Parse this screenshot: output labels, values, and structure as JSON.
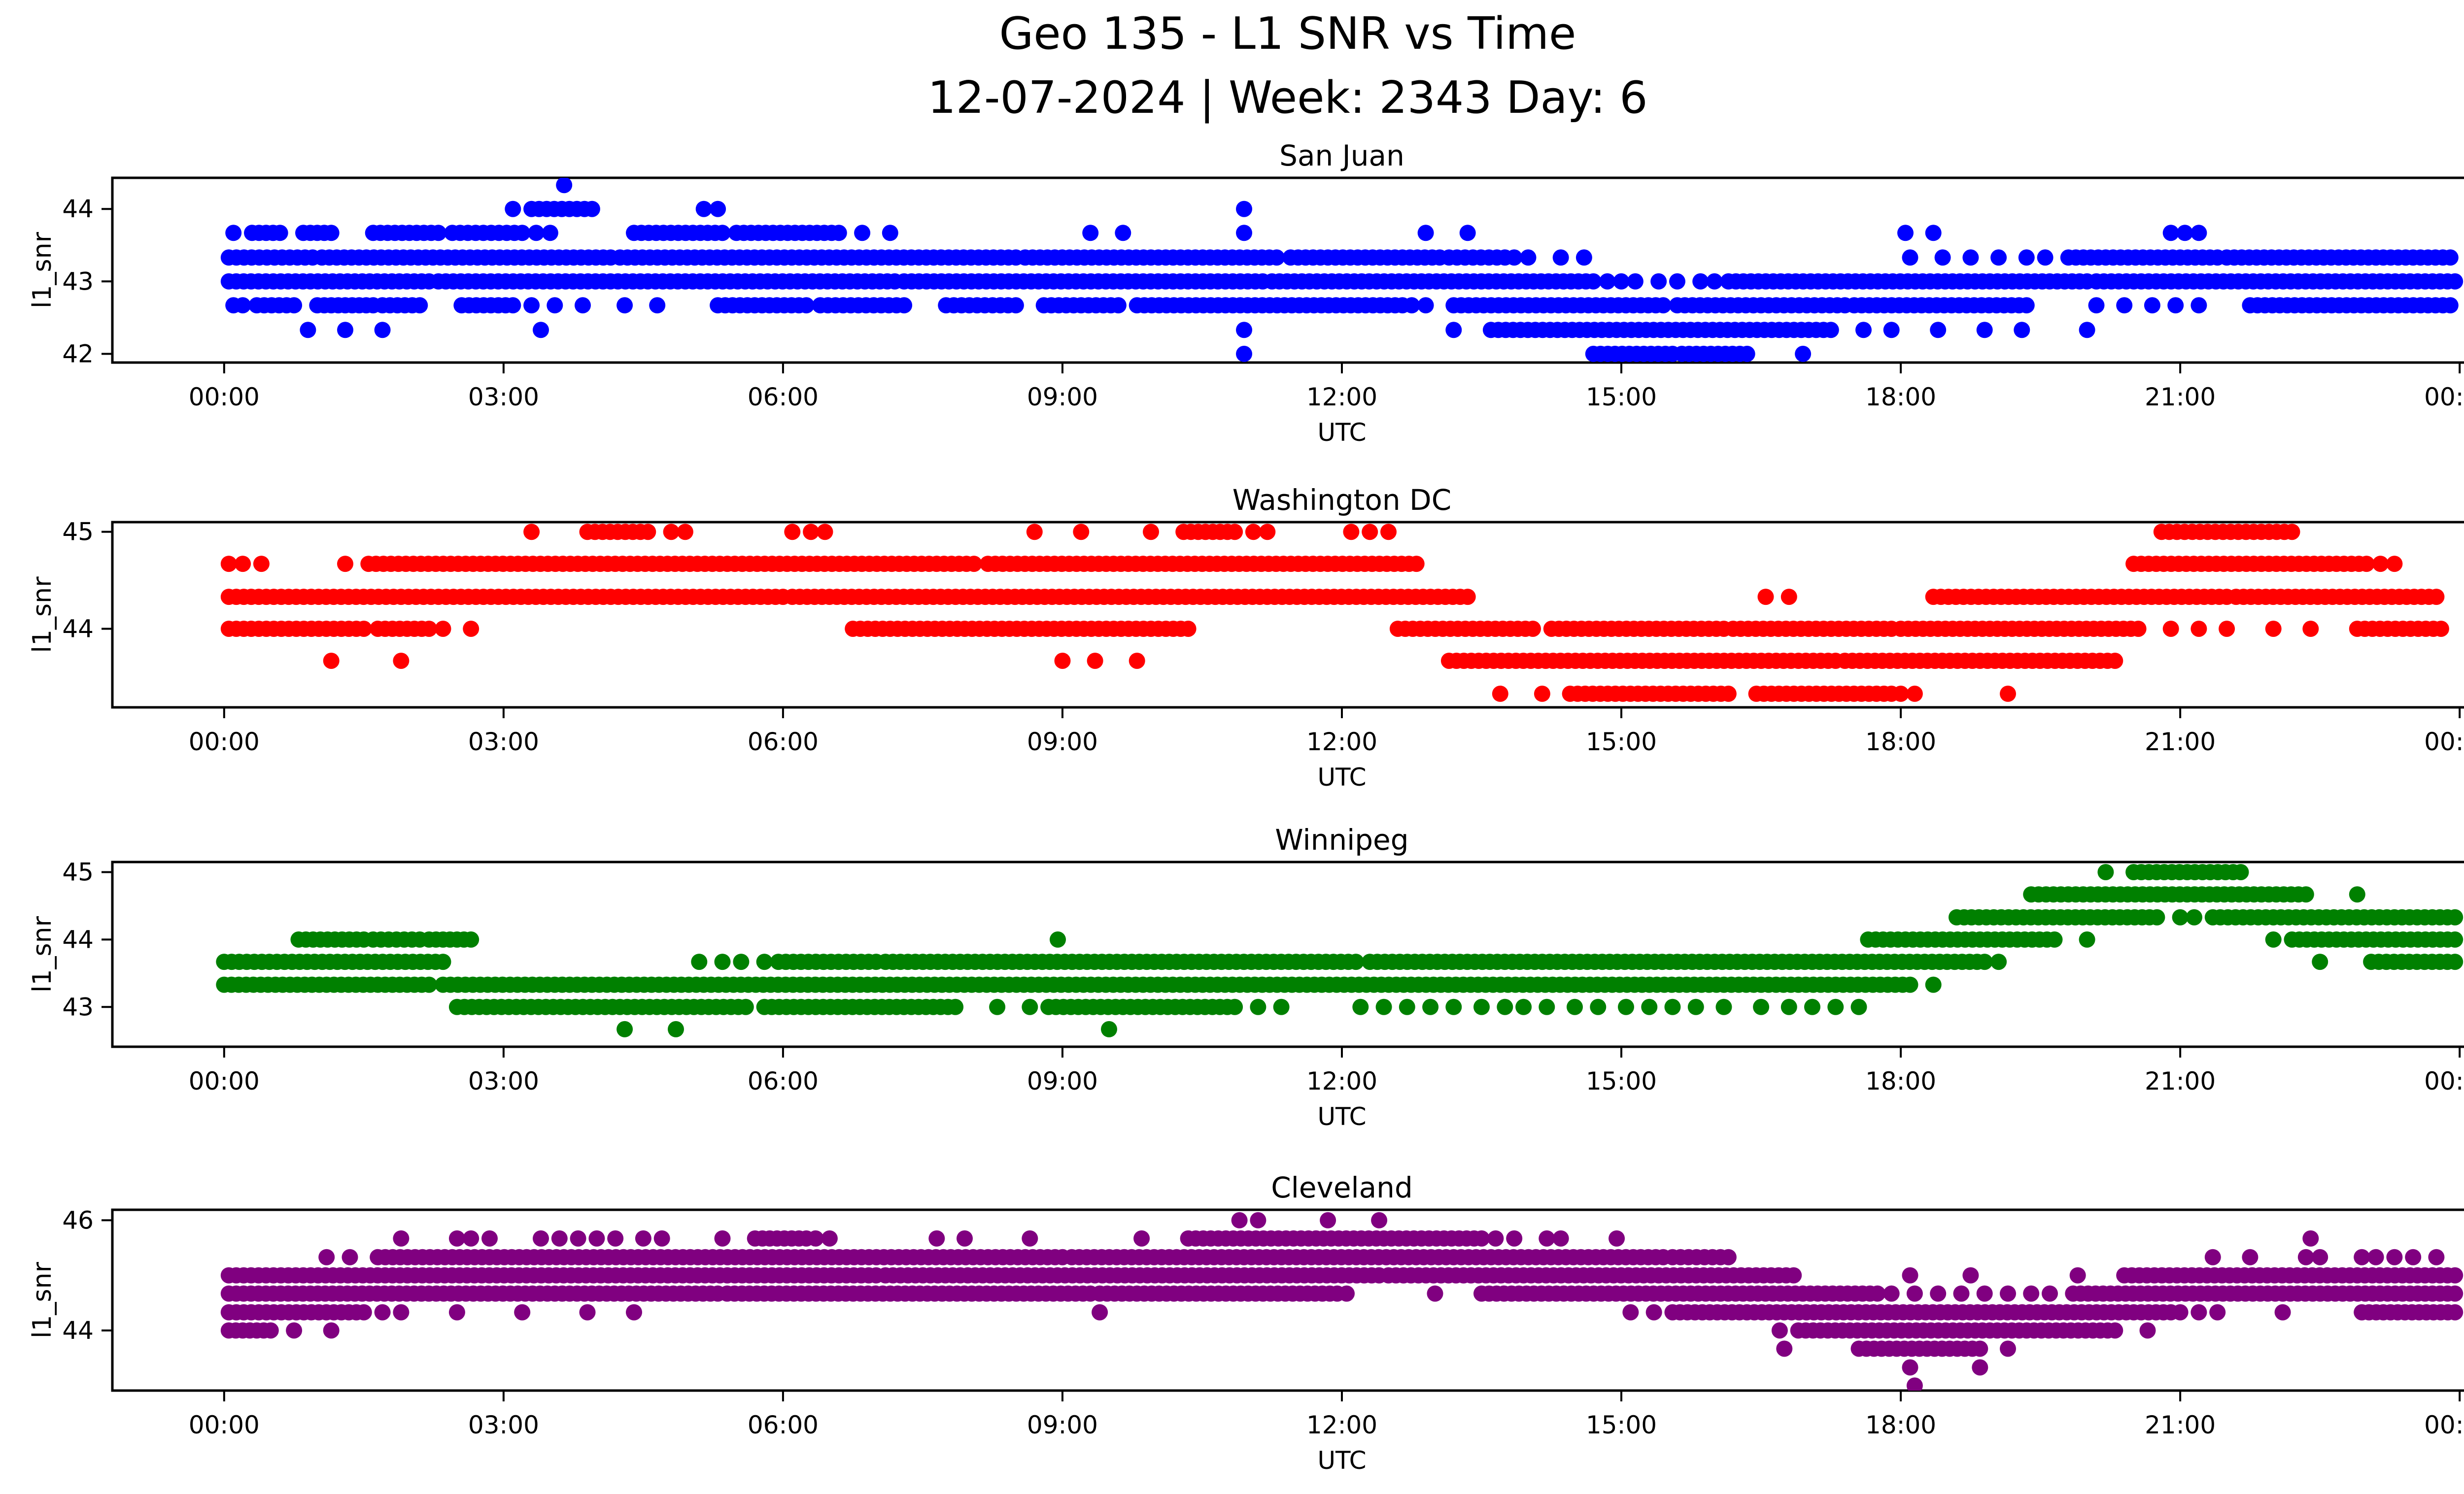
{
  "title": {
    "line1": "Geo 135 - L1 SNR vs Time",
    "line2": "12-07-2024 | Week: 2343 Day: 6"
  },
  "chart_data": {
    "type": "scatter",
    "suptitle": "Geo 135 - L1 SNR vs Time",
    "subtitle": "12-07-2024 | Week: 2343 Day: 6",
    "xlabel": "UTC",
    "ylabel": "l1_snr",
    "x_unit_hours_utc": true,
    "xlim": [
      -1.2,
      25.2
    ],
    "snr_quantization_step": 0.33,
    "grid": false,
    "legend": "none",
    "xticks": [
      {
        "hour": 0,
        "label": "00:00"
      },
      {
        "hour": 3,
        "label": "03:00"
      },
      {
        "hour": 6,
        "label": "06:00"
      },
      {
        "hour": 9,
        "label": "09:00"
      },
      {
        "hour": 12,
        "label": "12:00"
      },
      {
        "hour": 15,
        "label": "15:00"
      },
      {
        "hour": 18,
        "label": "18:00"
      },
      {
        "hour": 21,
        "label": "21:00"
      },
      {
        "hour": 24,
        "label": "00:00"
      }
    ],
    "subplots": [
      {
        "name": "San Juan",
        "color": "#0000FF",
        "ylim": [
          41.88,
          44.43
        ],
        "yticks": [
          42,
          43,
          44
        ],
        "levels": [
          {
            "snr": 44.33,
            "dots": [
              3.65
            ]
          },
          {
            "snr": 44.0,
            "dense": [
              [
                3.3,
                3.95
              ]
            ],
            "dots": [
              3.1,
              5.15,
              5.3,
              10.95
            ]
          },
          {
            "snr": 43.67,
            "dense": [
              [
                0.3,
                0.6
              ],
              [
                0.85,
                1.15
              ],
              [
                1.6,
                2.3
              ],
              [
                2.45,
                3.2
              ],
              [
                4.4,
                5.35
              ],
              [
                5.5,
                6.6
              ]
            ],
            "dots": [
              0.1,
              3.35,
              3.5,
              6.85,
              7.15,
              9.3,
              9.65,
              10.95,
              12.9,
              13.35,
              18.05,
              18.35,
              20.9,
              21.05,
              21.2
            ]
          },
          {
            "snr": 43.33,
            "dense": [
              [
                0.05,
                0.95
              ],
              [
                1.05,
                4.15
              ],
              [
                4.25,
                8.5
              ],
              [
                8.6,
                11.3
              ],
              [
                11.45,
                13.05
              ],
              [
                13.15,
                13.75
              ],
              [
                19.8,
                21.4
              ],
              [
                21.5,
                23.9
              ]
            ],
            "dots": [
              13.85,
              14.0,
              14.35,
              14.6,
              18.1,
              18.45,
              18.75,
              19.05,
              19.35,
              19.55
            ]
          },
          {
            "snr": 43.0,
            "dense": [
              [
                0.05,
                2.2
              ],
              [
                2.3,
                7.2
              ],
              [
                7.3,
                11.15
              ],
              [
                11.25,
                14.7
              ],
              [
                16.15,
                20.0
              ],
              [
                20.1,
                23.95
              ]
            ],
            "dots": [
              14.85,
              15.0,
              15.15,
              15.4,
              15.6,
              15.85,
              16.0
            ]
          },
          {
            "snr": 42.67,
            "dense": [
              [
                0.35,
                0.75
              ],
              [
                1.0,
                1.6
              ],
              [
                1.7,
                2.1
              ],
              [
                2.55,
                3.1
              ],
              [
                5.3,
                6.25
              ],
              [
                6.4,
                7.3
              ],
              [
                7.75,
                8.5
              ],
              [
                8.8,
                9.6
              ],
              [
                9.8,
                12.65
              ],
              [
                13.2,
                15.45
              ],
              [
                15.6,
                17.4
              ],
              [
                17.5,
                19.35
              ],
              [
                21.75,
                23.9
              ]
            ],
            "dots": [
              0.1,
              0.2,
              3.3,
              3.55,
              3.85,
              4.3,
              4.65,
              12.75,
              12.9,
              20.1,
              20.4,
              20.7,
              20.95,
              21.2
            ]
          },
          {
            "snr": 42.33,
            "dense": [
              [
                13.6,
                17.25
              ]
            ],
            "dots": [
              0.9,
              1.3,
              1.7,
              3.4,
              10.95,
              13.2,
              17.6,
              17.9,
              18.4,
              18.9,
              19.3,
              20.0
            ]
          },
          {
            "snr": 42.0,
            "dense": [
              [
                14.7,
                15.55
              ],
              [
                15.65,
                16.35
              ]
            ],
            "dots": [
              10.95,
              16.95
            ]
          }
        ]
      },
      {
        "name": "Washington DC",
        "color": "#FF0000",
        "ylim": [
          43.19,
          45.1
        ],
        "yticks": [
          44,
          45
        ],
        "levels": [
          {
            "snr": 45.0,
            "dense": [
              [
                3.9,
                4.55
              ],
              [
                10.3,
                10.85
              ],
              [
                20.8,
                22.2
              ]
            ],
            "dots": [
              3.3,
              4.8,
              4.95,
              6.1,
              6.3,
              6.45,
              8.7,
              9.2,
              9.95,
              11.05,
              11.2,
              12.1,
              12.3,
              12.5
            ]
          },
          {
            "snr": 44.67,
            "dense": [
              [
                1.55,
                8.05
              ],
              [
                8.2,
                12.8
              ],
              [
                20.5,
                23.0
              ]
            ],
            "dots": [
              0.05,
              0.2,
              0.4,
              1.3,
              23.15,
              23.3
            ]
          },
          {
            "snr": 44.33,
            "dense": [
              [
                0.05,
                6.0
              ],
              [
                6.1,
                13.35
              ],
              [
                18.35,
                21.5
              ],
              [
                21.6,
                23.75
              ]
            ],
            "dots": [
              16.55,
              16.8
            ]
          },
          {
            "snr": 44.0,
            "dense": [
              [
                0.05,
                1.5
              ],
              [
                1.65,
                2.2
              ],
              [
                6.75,
                10.35
              ],
              [
                12.6,
                14.05
              ],
              [
                14.25,
                16.1
              ],
              [
                16.2,
                17.9
              ],
              [
                18.0,
                20.55
              ],
              [
                22.9,
                23.8
              ]
            ],
            "dots": [
              2.35,
              2.65,
              20.9,
              21.2,
              21.5,
              22.0,
              22.4
            ]
          },
          {
            "snr": 43.67,
            "dense": [
              [
                13.15,
                17.3
              ],
              [
                17.4,
                20.3
              ]
            ],
            "dots": [
              1.15,
              1.9,
              9.0,
              9.35,
              9.8
            ]
          },
          {
            "snr": 43.33,
            "dense": [
              [
                14.45,
                16.15
              ],
              [
                16.45,
                17.9
              ]
            ],
            "dots": [
              13.7,
              14.15,
              18.0,
              18.15,
              19.15
            ]
          }
        ]
      },
      {
        "name": "Winnipeg",
        "color": "#008000",
        "ylim": [
          42.41,
          45.15
        ],
        "yticks": [
          43,
          44,
          45
        ],
        "levels": [
          {
            "snr": 45.0,
            "dense": [
              [
                20.5,
                21.65
              ]
            ],
            "dots": [
              20.2
            ]
          },
          {
            "snr": 44.67,
            "dense": [
              [
                19.4,
                22.35
              ]
            ],
            "dots": [
              22.9
            ]
          },
          {
            "snr": 44.33,
            "dense": [
              [
                18.6,
                20.75
              ],
              [
                21.35,
                23.95
              ]
            ],
            "dots": [
              21.0,
              21.15
            ]
          },
          {
            "snr": 44.0,
            "dense": [
              [
                0.8,
                1.5
              ],
              [
                1.6,
                2.1
              ],
              [
                2.2,
                2.65
              ],
              [
                17.65,
                19.65
              ],
              [
                22.2,
                23.95
              ]
            ],
            "dots": [
              8.95,
              20.0,
              22.0
            ]
          },
          {
            "snr": 43.67,
            "dense": [
              [
                0.0,
                2.35
              ],
              [
                5.95,
                7.0
              ],
              [
                7.1,
                12.15
              ],
              [
                12.3,
                18.9
              ],
              [
                23.05,
                23.95
              ]
            ],
            "dots": [
              5.1,
              5.35,
              5.55,
              5.8,
              19.05,
              22.5
            ]
          },
          {
            "snr": 43.33,
            "dense": [
              [
                0.0,
                2.2
              ],
              [
                2.35,
                18.1
              ]
            ],
            "dots": [
              18.35
            ]
          },
          {
            "snr": 43.0,
            "dense": [
              [
                2.5,
                5.6
              ],
              [
                5.8,
                7.85
              ],
              [
                8.85,
                10.85
              ]
            ],
            "dots": [
              8.3,
              8.65,
              11.1,
              11.35,
              12.2,
              12.45,
              12.7,
              12.95,
              13.2,
              13.5,
              13.75,
              13.95,
              14.2,
              14.5,
              14.75,
              15.05,
              15.3,
              15.55,
              15.8,
              16.1,
              16.5,
              16.8,
              17.05,
              17.3,
              17.55
            ]
          },
          {
            "snr": 42.67,
            "dots": [
              4.3,
              4.85,
              9.5
            ]
          }
        ]
      },
      {
        "name": "Cleveland",
        "color": "#800080",
        "ylim": [
          42.91,
          46.19
        ],
        "yticks": [
          44,
          46
        ],
        "levels": [
          {
            "snr": 46.0,
            "dots": [
              10.9,
              11.1,
              11.85,
              12.4
            ]
          },
          {
            "snr": 45.67,
            "dense": [
              [
                5.7,
                6.25
              ],
              [
                10.35,
                13.5
              ]
            ],
            "dots": [
              1.9,
              2.5,
              2.65,
              2.85,
              3.4,
              3.6,
              3.8,
              4.0,
              4.2,
              4.5,
              4.7,
              5.35,
              6.35,
              6.5,
              7.65,
              7.95,
              8.65,
              9.85,
              13.65,
              13.85,
              14.2,
              14.35,
              14.95,
              22.4
            ]
          },
          {
            "snr": 45.33,
            "dense": [
              [
                1.65,
                9.0
              ],
              [
                9.1,
                15.45
              ],
              [
                15.55,
                16.15
              ]
            ],
            "dots": [
              1.1,
              1.35,
              21.35,
              21.75,
              22.35,
              22.5,
              22.95,
              23.1,
              23.3,
              23.5,
              23.75
            ]
          },
          {
            "snr": 45.0,
            "dense": [
              [
                0.05,
                7.0
              ],
              [
                7.1,
                12.4
              ],
              [
                12.5,
                16.85
              ],
              [
                20.4,
                23.95
              ]
            ],
            "dots": [
              18.1,
              18.75,
              19.9
            ]
          },
          {
            "snr": 44.67,
            "dense": [
              [
                0.05,
                5.3
              ],
              [
                5.4,
                9.3
              ],
              [
                9.4,
                11.95
              ],
              [
                13.5,
                17.75
              ],
              [
                19.85,
                23.95
              ]
            ],
            "dots": [
              12.05,
              13.0,
              17.9,
              18.15,
              18.4,
              18.65,
              18.9,
              19.15,
              19.4,
              19.6
            ]
          },
          {
            "snr": 44.33,
            "dense": [
              [
                0.05,
                1.5
              ],
              [
                15.55,
                20.9
              ],
              [
                22.95,
                23.95
              ]
            ],
            "dots": [
              1.7,
              1.9,
              2.5,
              3.2,
              3.9,
              4.4,
              9.4,
              15.1,
              15.35,
              21.0,
              21.2,
              21.4,
              22.1
            ]
          },
          {
            "snr": 44.0,
            "dense": [
              [
                0.05,
                0.5
              ],
              [
                16.9,
                20.3
              ]
            ],
            "dots": [
              0.75,
              1.15,
              16.7,
              20.65
            ]
          },
          {
            "snr": 43.67,
            "dense": [
              [
                17.55,
                18.85
              ]
            ],
            "dots": [
              16.75,
              19.15
            ]
          },
          {
            "snr": 43.33,
            "dots": [
              18.1,
              18.85
            ]
          },
          {
            "snr": 43.0,
            "dots": [
              18.15
            ]
          }
        ]
      }
    ]
  }
}
